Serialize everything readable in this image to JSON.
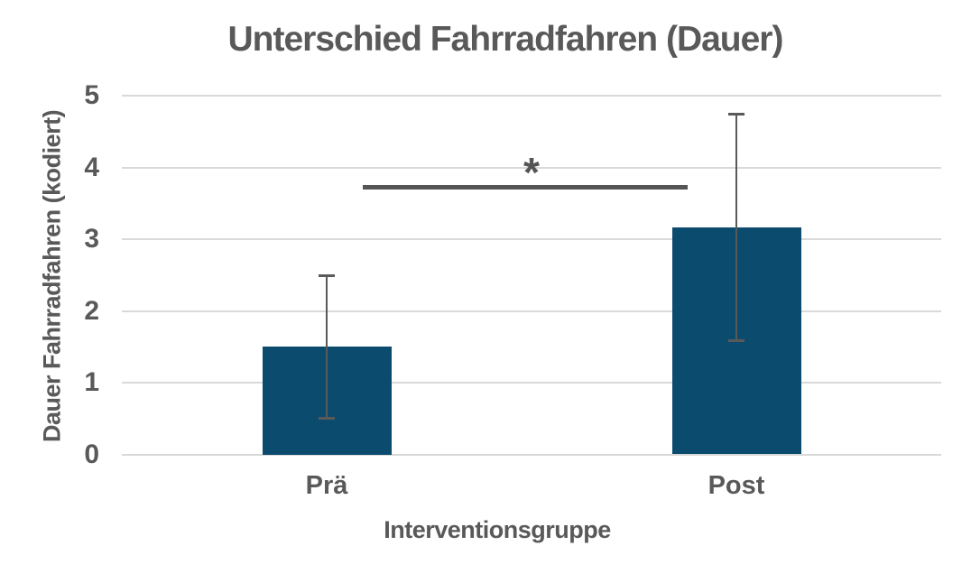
{
  "chart_data": {
    "type": "bar",
    "title": "Unterschied Fahrradfahren (Dauer)",
    "xlabel": "Interventionsgruppe",
    "ylabel": "Dauer Fahrradfahren (kodiert)",
    "categories": [
      "Prä",
      "Post"
    ],
    "values": [
      1.5,
      3.16
    ],
    "error_low": [
      0.5,
      1.58
    ],
    "error_high": [
      2.5,
      4.75
    ],
    "ylim": [
      0,
      5
    ],
    "yticks": [
      0,
      1,
      2,
      3,
      4,
      5
    ],
    "grid": "horizontal-only",
    "legend": "none",
    "significance": {
      "label": "*",
      "x1_frac": 0.294,
      "x2_frac": 0.69,
      "y_value": 3.72,
      "label_x_frac": 0.5,
      "label_y_value": 4.03
    },
    "colors": {
      "bar": "#0b4c6e",
      "text": "#595959",
      "gridline": "#d9d9d9",
      "error_bar": "#595959",
      "significance": "#555555",
      "background": "#ffffff"
    }
  }
}
